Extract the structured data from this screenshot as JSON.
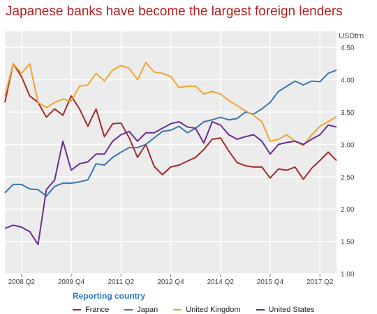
{
  "title": "Japanese banks have become the largest foreign lenders",
  "unit": "USDtrn",
  "legend_title": "Reporting country",
  "colors": {
    "France": "#a52a2a",
    "Japan": "#3b76b4",
    "United Kingdom": "#f0a530",
    "United States": "#6a2d8f",
    "plot_bg": "#ececec",
    "grid": "#ffffff"
  },
  "chart_data": {
    "type": "line",
    "title": "Japanese banks have become the largest foreign lenders",
    "ylabel": "USDtrn",
    "ylim": [
      1.0,
      4.75
    ],
    "yticks": [
      "1.00",
      "1.50",
      "2.00",
      "2.50",
      "3.00",
      "3.50",
      "4.00",
      "4.50"
    ],
    "xtick_labels": [
      "2008 Q2",
      "2009 Q4",
      "2011 Q2",
      "2012 Q4",
      "2014 Q2",
      "2015 Q4",
      "2017 Q2"
    ],
    "xtick_indices": [
      2,
      8,
      14,
      20,
      26,
      32,
      38
    ],
    "legend_position": "bottom",
    "grid": true,
    "x": [
      "2007 Q4",
      "2008 Q1",
      "2008 Q2",
      "2008 Q3",
      "2008 Q4",
      "2009 Q1",
      "2009 Q2",
      "2009 Q3",
      "2009 Q4",
      "2010 Q1",
      "2010 Q2",
      "2010 Q3",
      "2010 Q4",
      "2011 Q1",
      "2011 Q2",
      "2011 Q3",
      "2011 Q4",
      "2012 Q1",
      "2012 Q2",
      "2012 Q3",
      "2012 Q4",
      "2013 Q1",
      "2013 Q2",
      "2013 Q3",
      "2013 Q4",
      "2014 Q1",
      "2014 Q2",
      "2014 Q3",
      "2014 Q4",
      "2015 Q1",
      "2015 Q2",
      "2015 Q3",
      "2015 Q4",
      "2016 Q1",
      "2016 Q2",
      "2016 Q3",
      "2016 Q4",
      "2017 Q1",
      "2017 Q2",
      "2017 Q3",
      "2017 Q4"
    ],
    "series": [
      {
        "name": "France",
        "values": [
          3.65,
          4.25,
          4.05,
          3.75,
          3.65,
          3.42,
          3.55,
          3.45,
          3.75,
          3.55,
          3.28,
          3.55,
          3.12,
          3.32,
          3.33,
          3.1,
          2.8,
          3.0,
          2.66,
          2.53,
          2.65,
          2.68,
          2.74,
          2.8,
          2.92,
          3.08,
          3.1,
          2.9,
          2.72,
          2.67,
          2.65,
          2.65,
          2.48,
          2.62,
          2.6,
          2.65,
          2.46,
          2.63,
          2.75,
          2.88,
          2.75
        ]
      },
      {
        "name": "Japan",
        "values": [
          2.25,
          2.38,
          2.38,
          2.31,
          2.3,
          2.2,
          2.35,
          2.4,
          2.4,
          2.42,
          2.45,
          2.7,
          2.68,
          2.8,
          2.88,
          2.95,
          2.95,
          3.0,
          3.1,
          3.2,
          3.22,
          3.28,
          3.18,
          3.25,
          3.35,
          3.38,
          3.42,
          3.38,
          3.4,
          3.5,
          3.47,
          3.55,
          3.65,
          3.82,
          3.9,
          3.98,
          3.92,
          3.98,
          3.97,
          4.1,
          4.15
        ]
      },
      {
        "name": "United Kingdom",
        "values": [
          3.75,
          4.25,
          4.1,
          4.25,
          3.65,
          3.57,
          3.65,
          3.7,
          3.67,
          3.9,
          3.92,
          4.1,
          3.98,
          4.15,
          4.22,
          4.18,
          4.0,
          4.27,
          4.12,
          4.1,
          4.05,
          3.88,
          3.9,
          3.9,
          3.78,
          3.82,
          3.78,
          3.68,
          3.6,
          3.52,
          3.45,
          3.35,
          3.05,
          3.08,
          3.15,
          3.05,
          2.98,
          3.15,
          3.28,
          3.35,
          3.43
        ]
      },
      {
        "name": "United States",
        "values": [
          1.7,
          1.75,
          1.72,
          1.65,
          1.45,
          2.3,
          2.45,
          3.05,
          2.6,
          2.7,
          2.73,
          2.85,
          2.85,
          3.05,
          3.15,
          3.2,
          3.05,
          3.18,
          3.18,
          3.25,
          3.32,
          3.35,
          3.27,
          3.25,
          3.02,
          3.35,
          3.3,
          3.15,
          3.08,
          3.12,
          3.15,
          3.05,
          2.85,
          3.0,
          3.03,
          3.05,
          3.0,
          3.08,
          3.15,
          3.3,
          3.27
        ]
      }
    ]
  }
}
